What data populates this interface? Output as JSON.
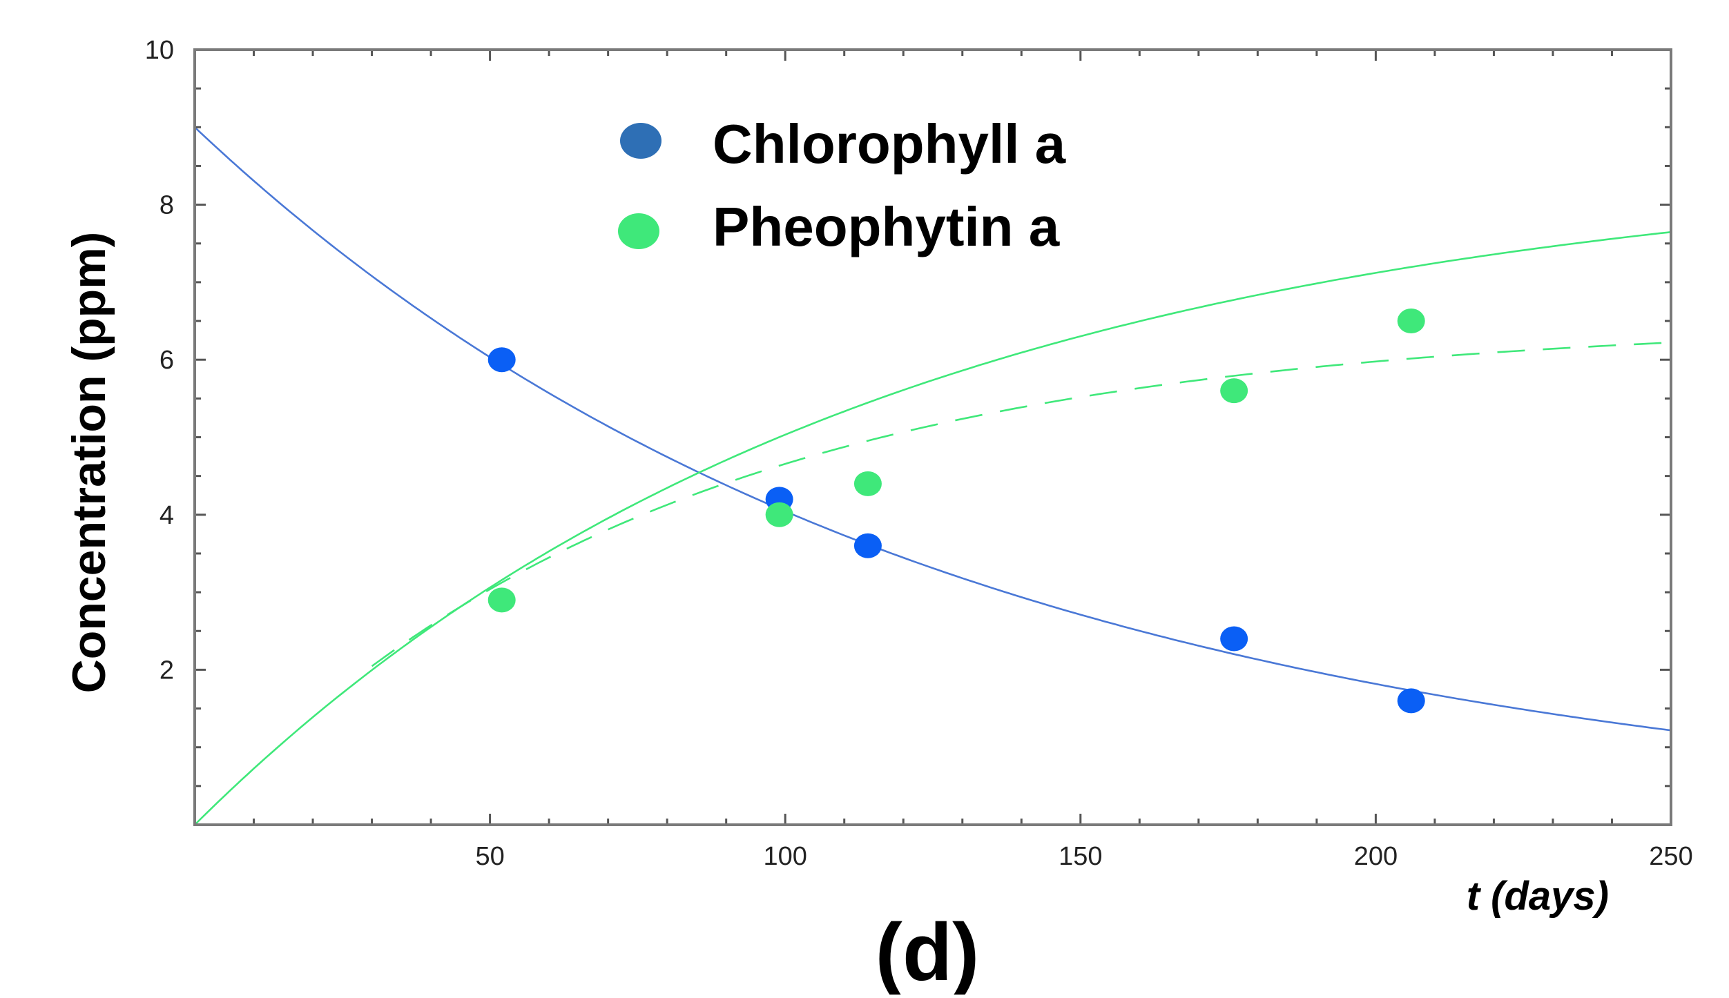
{
  "chart_data": {
    "type": "scatter",
    "title": "",
    "panel_label": "(d)",
    "xlabel": "t (days)",
    "ylabel": "Concentration (ppm)",
    "xlim": [
      0,
      250
    ],
    "ylim": [
      0,
      10
    ],
    "x_ticks": [
      50,
      100,
      150,
      200,
      250
    ],
    "y_ticks": [
      2,
      4,
      6,
      8,
      10
    ],
    "grid": false,
    "legend_position": "top-center",
    "series": [
      {
        "name": "Chlorophyll a",
        "marker_color": "#0a5ff5",
        "legend_color": "#2e6fb5",
        "line_color": "#4a78d6",
        "points": [
          {
            "x": 52,
            "y": 6.0
          },
          {
            "x": 99,
            "y": 4.2
          },
          {
            "x": 114,
            "y": 3.6
          },
          {
            "x": 176,
            "y": 2.4
          },
          {
            "x": 206,
            "y": 1.6
          }
        ],
        "fit": {
          "kind": "exponential-decay",
          "c0": 9.0,
          "k": 0.008
        }
      },
      {
        "name": "Pheophytin a",
        "marker_color": "#3fe87a",
        "legend_color": "#3fe87a",
        "line_color": "#3fe87a",
        "points": [
          {
            "x": 52,
            "y": 2.9
          },
          {
            "x": 99,
            "y": 4.0
          },
          {
            "x": 114,
            "y": 4.4
          },
          {
            "x": 176,
            "y": 5.6
          },
          {
            "x": 206,
            "y": 6.5
          }
        ],
        "fit": {
          "kind": "exponential-rise",
          "a": 8.6,
          "k": 0.0088
        },
        "fit_dashed": {
          "kind": "exponential-rise",
          "a": 6.5,
          "k": 0.0126
        }
      }
    ]
  }
}
